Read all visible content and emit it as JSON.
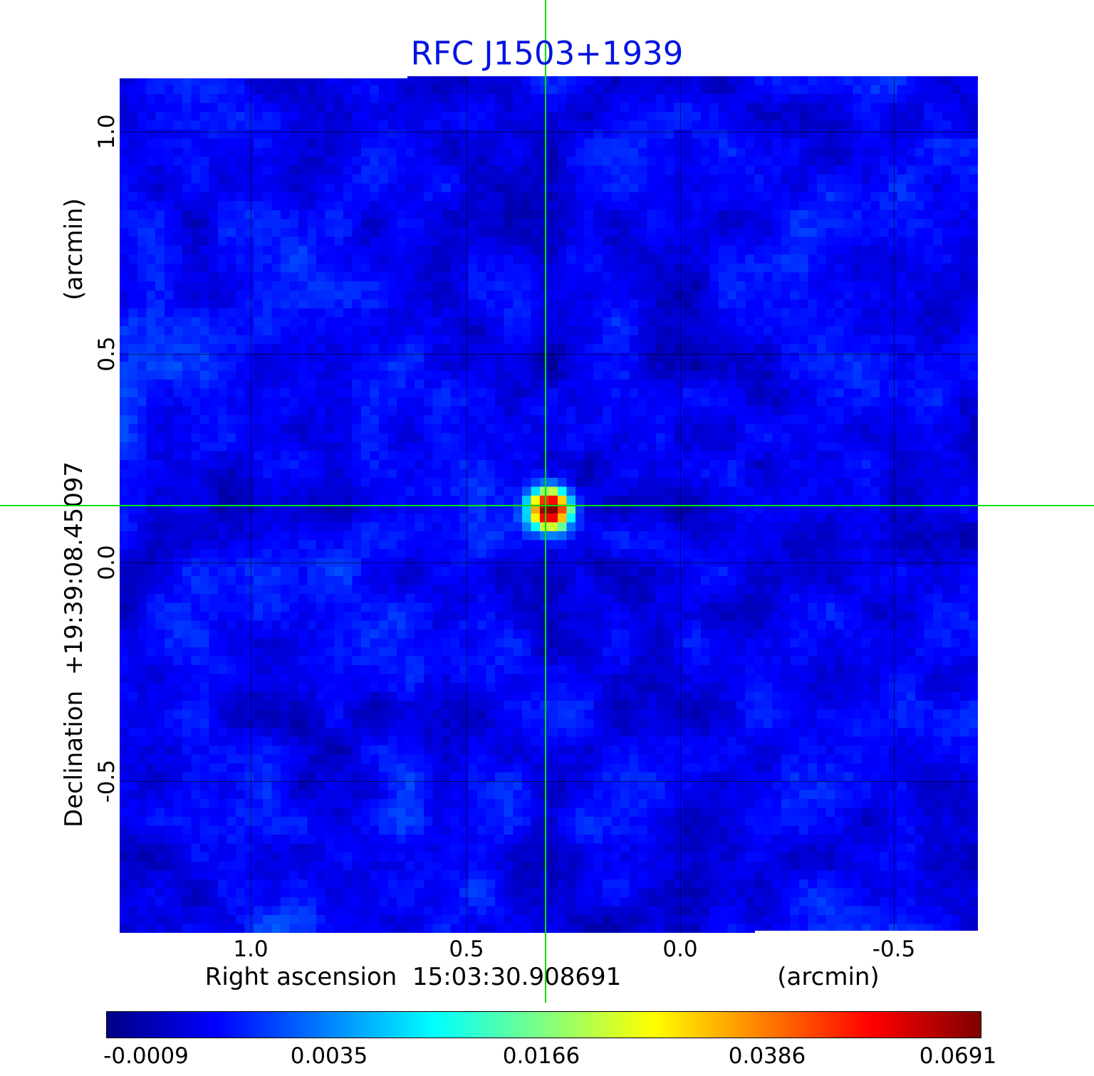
{
  "title": "RFC J1503+1939",
  "colors": {
    "title": "#0013e0",
    "crosshair": "#00dd00",
    "grid": "#000000"
  },
  "axes": {
    "y_unit": "(arcmin)",
    "y_label": "Declination  +19:39:08.45097",
    "y_ticks": [
      "1.0",
      "0.5",
      "0.0",
      "-0.5"
    ],
    "x_label": "Right ascension  15:03:30.908691",
    "x_unit": "(arcmin)",
    "x_ticks": [
      "1.0",
      "0.5",
      "0.0",
      "-0.5"
    ]
  },
  "colorbar": {
    "colormap": "jet",
    "ticks": [
      "-0.0009",
      "0.0035",
      "0.0166",
      "0.0386",
      "0.0691"
    ]
  },
  "chart_data": {
    "type": "heatmap",
    "title": "RFC J1503+1939",
    "xlabel": "Right ascension 15:03:30.908691 (arcmin)",
    "ylabel": "Declination +19:39:08.45097 (arcmin)",
    "x_ticks_arcmin": [
      1.0,
      0.5,
      0.0,
      -0.5
    ],
    "y_ticks_arcmin": [
      1.0,
      0.5,
      0.0,
      -0.5
    ],
    "colormap": "jet",
    "scale": "nonlinear",
    "intensity_ticks": [
      -0.0009,
      0.0035,
      0.0166,
      0.0386,
      0.0691
    ],
    "vmin": -0.0009,
    "vmax": 0.0691,
    "source": {
      "ra_offset_arcmin": 0.31,
      "dec_offset_arcmin": 0.14,
      "peak_intensity": 0.0691,
      "x_frac": 0.4963,
      "y_frac": 0.5012,
      "sigma_cells": 1.7
    },
    "background": {
      "mean_frac": 0.12,
      "noise_frac": 0.05
    },
    "grid_fracs": {
      "x": [
        0.1527,
        0.4041,
        0.6531,
        0.9021
      ],
      "y": [
        0.0648,
        0.3242,
        0.5677,
        0.8229
      ]
    },
    "cells": 96
  }
}
